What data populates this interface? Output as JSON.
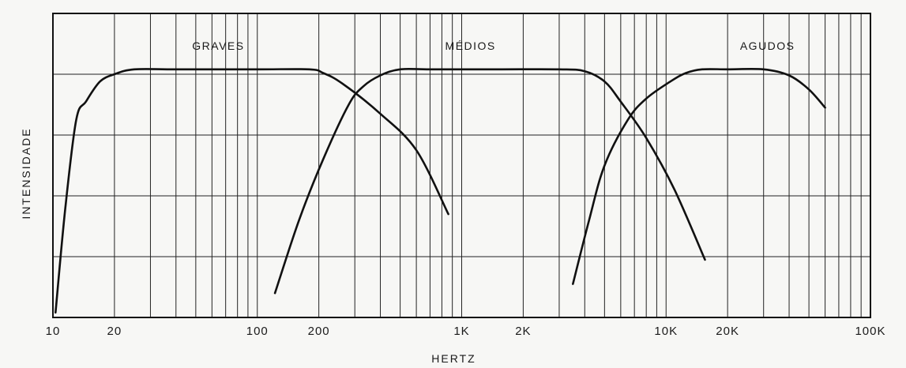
{
  "chart_data": {
    "type": "line",
    "title": "",
    "xlabel": "HERTZ",
    "ylabel": "INTENSIDADE",
    "x_scale": "log",
    "xlim": [
      10,
      100000
    ],
    "ylim": [
      0,
      5
    ],
    "grid": true,
    "x_ticks": [
      {
        "value": 10,
        "label": "10"
      },
      {
        "value": 20,
        "label": "20"
      },
      {
        "value": 100,
        "label": "100"
      },
      {
        "value": 200,
        "label": "200"
      },
      {
        "value": 1000,
        "label": "1K"
      },
      {
        "value": 2000,
        "label": "2K"
      },
      {
        "value": 10000,
        "label": "10K"
      },
      {
        "value": 20000,
        "label": "20K"
      },
      {
        "value": 100000,
        "label": "100K"
      }
    ],
    "y_gridlines": [
      1,
      2,
      3,
      4
    ],
    "series": [
      {
        "name": "GRAVES",
        "label_x": 48,
        "label_y": 4.4,
        "x": [
          10.3,
          11.5,
          13,
          14.5,
          17,
          20,
          25,
          40,
          100,
          180,
          210,
          260,
          400,
          600,
          860
        ],
        "y": [
          0.08,
          1.8,
          3.25,
          3.55,
          3.88,
          4.0,
          4.08,
          4.08,
          4.08,
          4.08,
          4.02,
          3.85,
          3.35,
          2.75,
          1.7
        ]
      },
      {
        "name": "MÉDIOS",
        "label_x": 830,
        "label_y": 4.4,
        "x": [
          122,
          160,
          210,
          280,
          330,
          400,
          500,
          700,
          1500,
          3000,
          4000,
          5000,
          6000,
          8000,
          11000,
          15500
        ],
        "y": [
          0.4,
          1.6,
          2.6,
          3.5,
          3.8,
          3.98,
          4.08,
          4.08,
          4.08,
          4.08,
          4.05,
          3.88,
          3.55,
          2.95,
          2.1,
          0.95
        ]
      },
      {
        "name": "AGUDOS",
        "label_x": 23000,
        "label_y": 4.4,
        "x": [
          3500,
          4200,
          5000,
          6500,
          8000,
          10500,
          12500,
          15000,
          20000,
          30000,
          40000,
          50000,
          60000
        ],
        "y": [
          0.55,
          1.6,
          2.5,
          3.25,
          3.6,
          3.88,
          4.02,
          4.08,
          4.08,
          4.08,
          3.98,
          3.75,
          3.45
        ]
      }
    ]
  }
}
